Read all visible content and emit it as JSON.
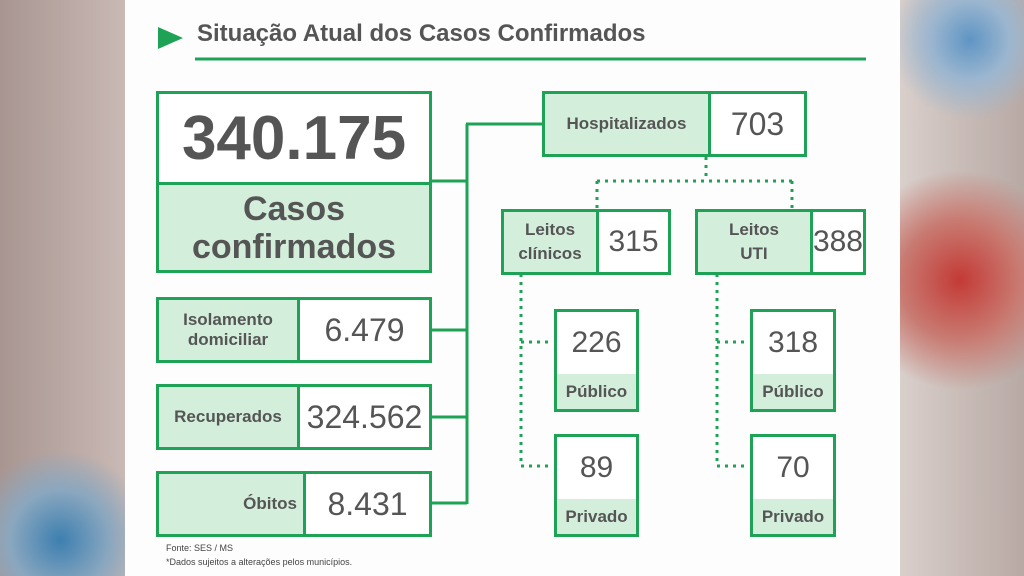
{
  "title": "Situação Atual dos Casos Confirmados",
  "total": {
    "value": "340.175",
    "label": "Casos confirmados"
  },
  "stats": [
    {
      "label": "Isolamento domiciliar",
      "value": "6.479"
    },
    {
      "label": "Recuperados",
      "value": "324.562"
    },
    {
      "label": "Óbitos",
      "value": "8.431"
    }
  ],
  "hospital": {
    "label": "Hospitalizados",
    "value": "703"
  },
  "beds": [
    {
      "label": "Leitos clínicos",
      "value": "315",
      "public": {
        "value": "226",
        "label": "Público"
      },
      "private": {
        "value": "89",
        "label": "Privado"
      }
    },
    {
      "label": "Leitos UTI",
      "value": "388",
      "public": {
        "value": "318",
        "label": "Público"
      },
      "private": {
        "value": "70",
        "label": "Privado"
      }
    }
  ],
  "footer": [
    "Fonte: SES / MS",
    "*Dados sujeitos a alterações pelos municípios."
  ]
}
